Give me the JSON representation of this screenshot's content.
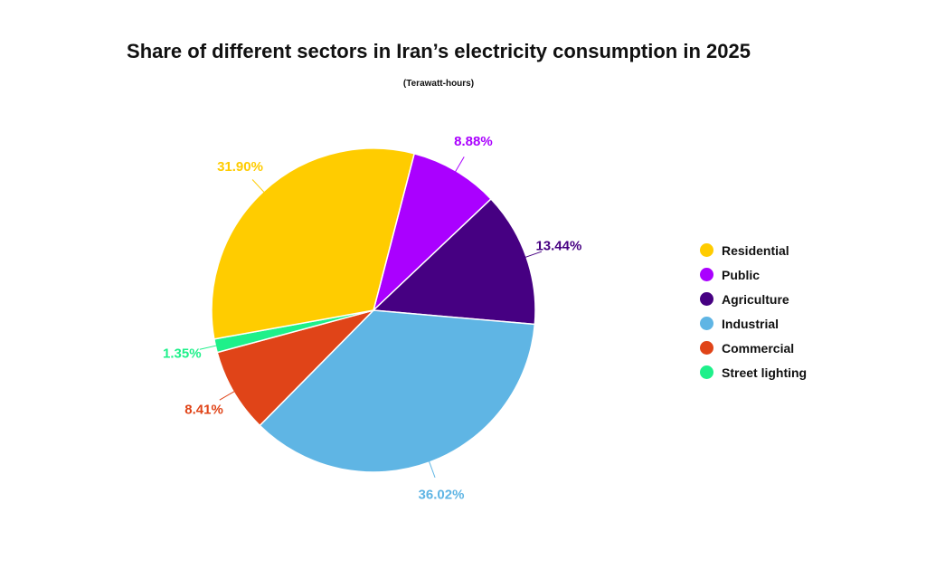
{
  "chart_data": {
    "type": "pie",
    "title": "Share of different sectors in Iran’s electricity consumption in 2025",
    "subtitle": "(Terawatt-hours)",
    "legend_position": "right",
    "start_angle_deg": 14.6,
    "slices": [
      {
        "label": "Public",
        "value": 8.88,
        "display": "8.88%",
        "color": "#aa00ff"
      },
      {
        "label": "Agriculture",
        "value": 13.44,
        "display": "13.44%",
        "color": "#460082"
      },
      {
        "label": "Industrial",
        "value": 36.02,
        "display": "36.02%",
        "color": "#5fb5e4"
      },
      {
        "label": "Commercial",
        "value": 8.41,
        "display": "8.41%",
        "color": "#e04418"
      },
      {
        "label": "Street lighting",
        "value": 1.35,
        "display": "1.35%",
        "color": "#1ef08a"
      },
      {
        "label": "Residential",
        "value": 31.9,
        "display": "31.90%",
        "color": "#ffcc00"
      }
    ],
    "legend_order": [
      "Residential",
      "Public",
      "Agriculture",
      "Industrial",
      "Commercial",
      "Street lighting"
    ]
  }
}
